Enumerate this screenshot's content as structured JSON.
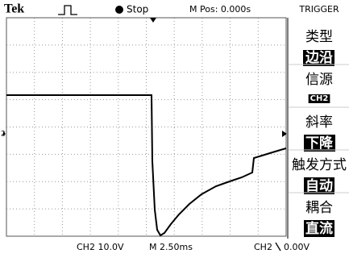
{
  "status_bar": {
    "brand": "Tek",
    "run_state": "Stop",
    "position": "M Pos: 0.000s"
  },
  "channel_marker": "2",
  "menu": {
    "title": "TRIGGER",
    "items": [
      {
        "label": "类型",
        "value": "边沿"
      },
      {
        "label": "信源",
        "value": "CH2"
      },
      {
        "label": "斜率",
        "value": "下降"
      },
      {
        "label": "触发方式",
        "value": "自动"
      },
      {
        "label": "耦合",
        "value": "直流"
      }
    ]
  },
  "footer": {
    "channel_scale": "CH2 10.0V",
    "time_scale": "M 2.50ms",
    "trigger_source": "CH2",
    "trigger_level": "0.00V"
  }
}
